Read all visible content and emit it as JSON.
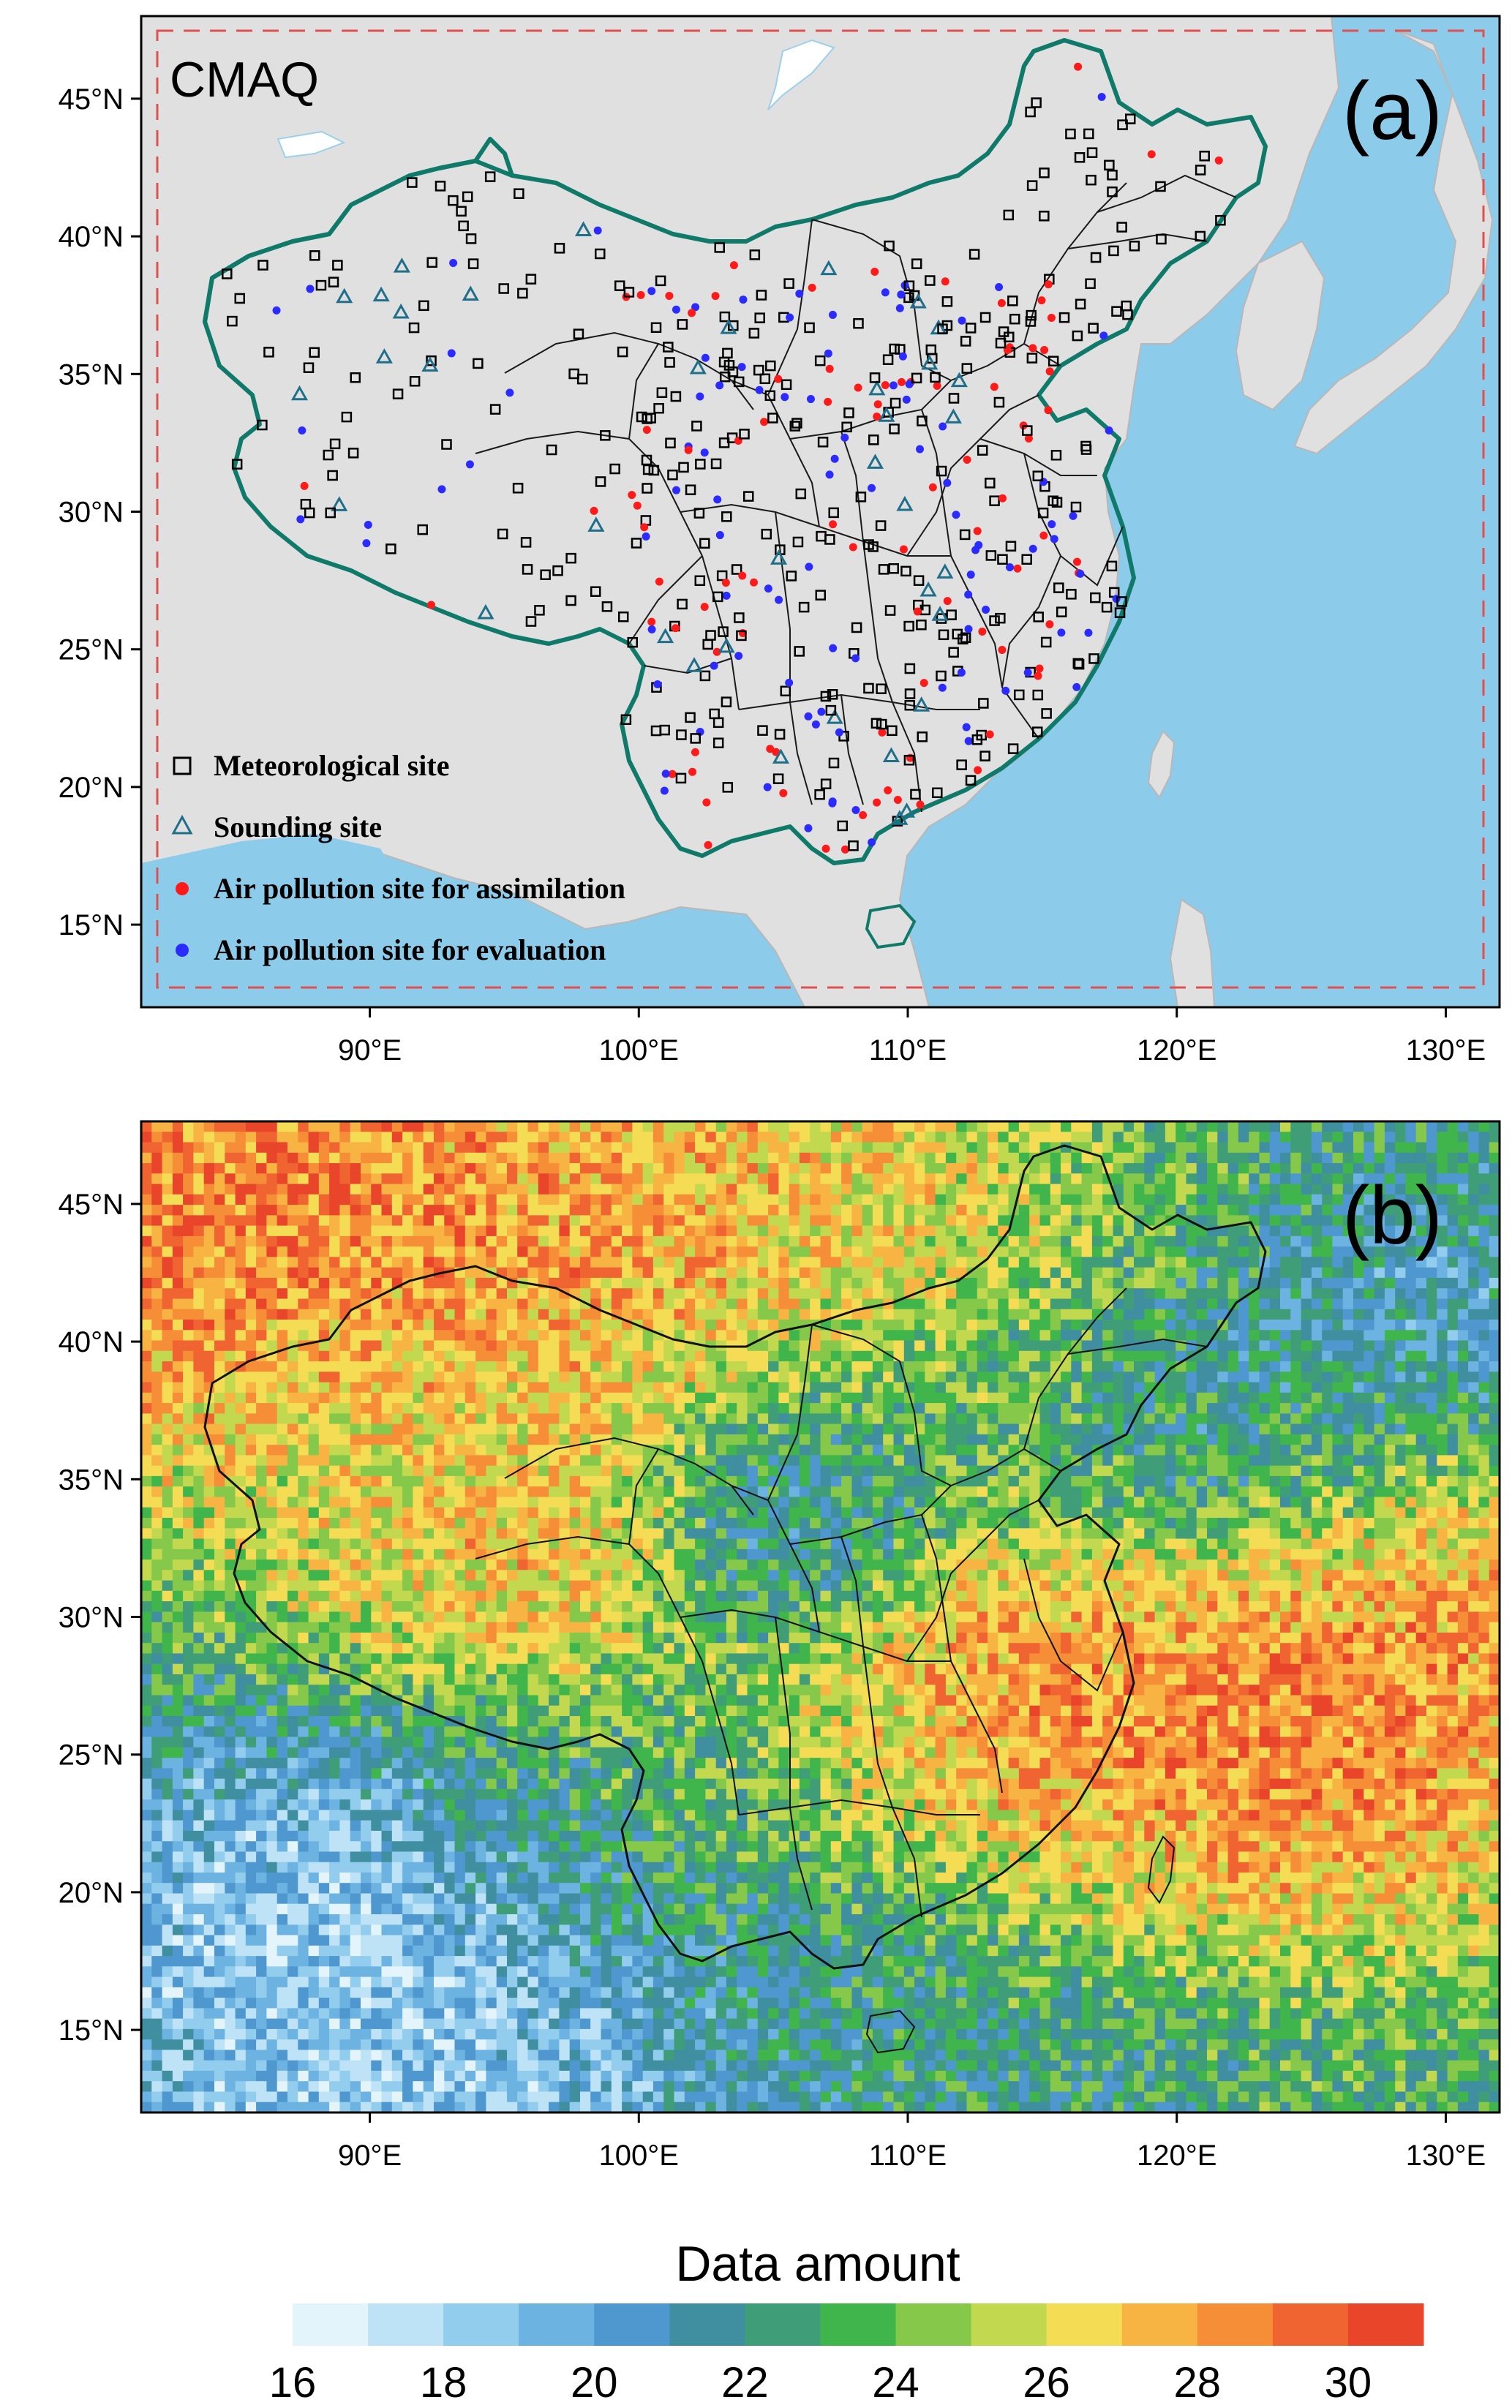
{
  "panel_a": {
    "model_label": "CMAQ",
    "panel_letter": "(a)",
    "legend": [
      {
        "label": "Meteorological site",
        "symbol": "hollow-square",
        "color": "#000000"
      },
      {
        "label": "Sounding site",
        "symbol": "hollow-triangle",
        "color": "#1f6f8b"
      },
      {
        "label": "Air pollution site for assimilation",
        "symbol": "filled-circle",
        "color": "#ff1a1a"
      },
      {
        "label": "Air pollution site for evaluation",
        "symbol": "filled-circle",
        "color": "#2b2bff"
      }
    ],
    "colors": {
      "ocean": "#8dcbea",
      "land": "#e0e0e0",
      "china_border": "#0f7a6a",
      "domain_box": "#e05050"
    }
  },
  "panel_b": {
    "panel_letter": "(b)"
  },
  "axes": {
    "lon_ticks": [
      "90°E",
      "100°E",
      "110°E",
      "120°E",
      "130°E"
    ],
    "lon_values": [
      90,
      100,
      110,
      120,
      130
    ],
    "lat_ticks": [
      "45°N",
      "40°N",
      "35°N",
      "30°N",
      "25°N",
      "20°N",
      "15°N"
    ],
    "lat_values": [
      45,
      40,
      35,
      30,
      25,
      20,
      15
    ],
    "lon_range": [
      81.5,
      132
    ],
    "lat_range": [
      12,
      48
    ]
  },
  "colorbar": {
    "title": "Data amount",
    "tick_labels": [
      "16",
      "18",
      "20",
      "22",
      "24",
      "26",
      "28",
      "30"
    ],
    "tick_values": [
      16,
      18,
      20,
      22,
      24,
      26,
      28,
      30
    ],
    "range": [
      16,
      31
    ],
    "colors": [
      "#e4f4fb",
      "#bfe3f6",
      "#93cdee",
      "#6cb3e2",
      "#4e98cf",
      "#3f8fa0",
      "#3f9e78",
      "#40b54b",
      "#86c94a",
      "#c2d94f",
      "#f5dc55",
      "#f7b443",
      "#f58e37",
      "#ef6430",
      "#e8452b"
    ]
  }
}
